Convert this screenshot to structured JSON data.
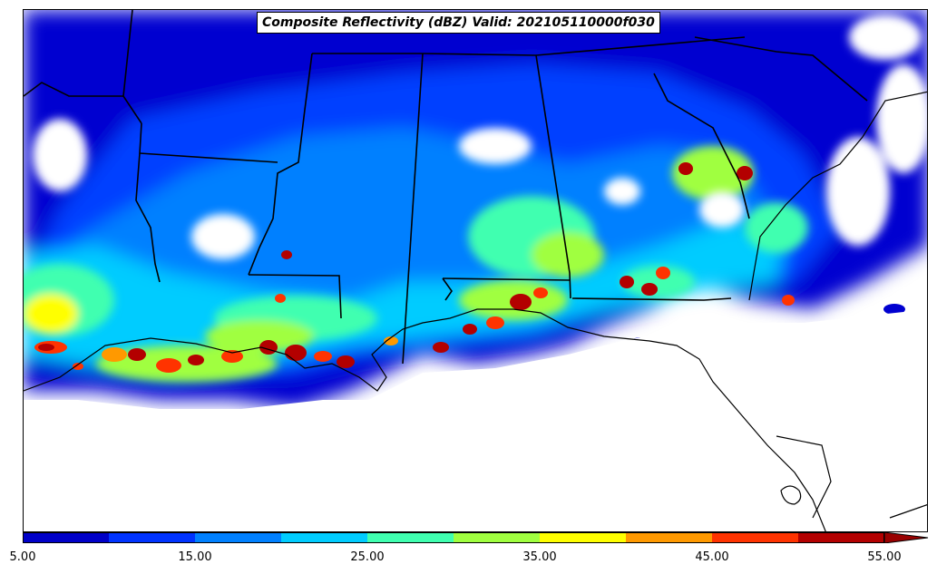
{
  "title": "Composite Reflectivity (dBZ) Valid: 202105110000f030",
  "colorbar": {
    "colors": [
      "#0000c8",
      "#0033ff",
      "#0080ff",
      "#00ccff",
      "#40ffb0",
      "#a0ff40",
      "#ffff00",
      "#ff9900",
      "#ff3300",
      "#b30000",
      "#990000"
    ],
    "tick_labels": [
      "5.00",
      "15.00",
      "25.00",
      "35.00",
      "45.00",
      "55.00"
    ],
    "min": 5,
    "max": 55,
    "step": 5,
    "extend": "max"
  },
  "map": {
    "region": "Southeastern United States (Gulf Coast)",
    "features": [
      "state-borders",
      "coastline",
      "radar-reflectivity-field"
    ]
  }
}
